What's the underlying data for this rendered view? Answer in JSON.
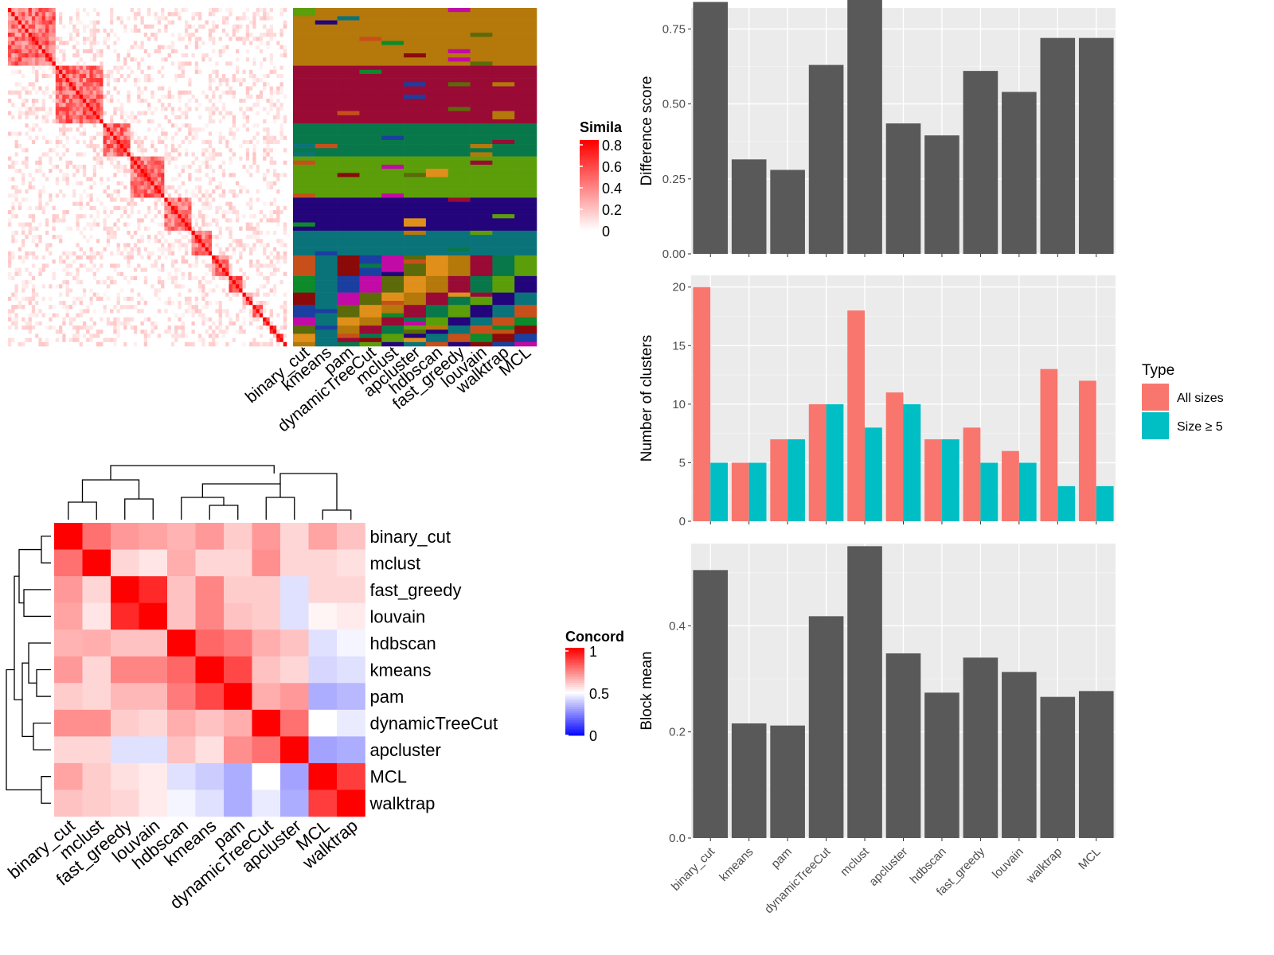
{
  "chart_data": [
    {
      "type": "heatmap",
      "panel": "similarity-matrix-with-cluster-labels",
      "legend_title": "Simila",
      "legend_ticks": [
        "0.8",
        "0.6",
        "0.4",
        "0.2",
        "0"
      ],
      "column_labels": [
        "binary_cut",
        "kmeans",
        "pam",
        "dynamicTreeCut",
        "mclust",
        "apcluster",
        "hdbscan",
        "fast_greedy",
        "louvain",
        "walktrap",
        "MCL"
      ],
      "blocks": [
        {
          "start": 0,
          "size": 14
        },
        {
          "start": 14,
          "size": 14
        },
        {
          "start": 28,
          "size": 8
        },
        {
          "start": 36,
          "size": 10
        },
        {
          "start": 46,
          "size": 8
        },
        {
          "start": 54,
          "size": 6
        },
        {
          "start": 60,
          "size": 5
        },
        {
          "start": 65,
          "size": 4
        },
        {
          "start": 69,
          "size": 3
        },
        {
          "start": 72,
          "size": 3
        },
        {
          "start": 75,
          "size": 2
        },
        {
          "start": 77,
          "size": 2
        },
        {
          "start": 79,
          "size": 2
        },
        {
          "start": 81,
          "size": 1
        }
      ],
      "n_items": 82,
      "label_colors": [
        "#b5780a",
        "#990a35",
        "#08784a",
        "#5c9e0a",
        "#23047a",
        "#0a737a",
        "#c7501a",
        "#0d8a2a",
        "#8a0a0a",
        "#1a3fa0",
        "#c20aa6",
        "#5c6a0a",
        "#e0901a"
      ]
    },
    {
      "type": "heatmap",
      "panel": "concordance-matrix",
      "legend_title": "Concord",
      "legend_ticks": [
        "1",
        "0.5",
        "0"
      ],
      "row_labels": [
        "binary_cut",
        "mclust",
        "fast_greedy",
        "louvain",
        "hdbscan",
        "kmeans",
        "pam",
        "dynamicTreeCut",
        "apcluster",
        "MCL",
        "walktrap"
      ],
      "column_labels": [
        "binary_cut",
        "mclust",
        "fast_greedy",
        "louvain",
        "hdbscan",
        "kmeans",
        "pam",
        "dynamicTreeCut",
        "apcluster",
        "MCL",
        "walktrap"
      ],
      "values": [
        [
          1.0,
          0.78,
          0.7,
          0.68,
          0.65,
          0.7,
          0.6,
          0.7,
          0.58,
          0.68,
          0.62
        ],
        [
          0.78,
          1.0,
          0.58,
          0.55,
          0.66,
          0.58,
          0.58,
          0.72,
          0.58,
          0.58,
          0.56
        ],
        [
          0.7,
          0.58,
          1.0,
          0.92,
          0.62,
          0.74,
          0.6,
          0.6,
          0.44,
          0.58,
          0.58
        ],
        [
          0.68,
          0.55,
          0.92,
          1.0,
          0.62,
          0.74,
          0.62,
          0.6,
          0.44,
          0.52,
          0.54
        ],
        [
          0.65,
          0.66,
          0.62,
          0.62,
          1.0,
          0.8,
          0.76,
          0.66,
          0.62,
          0.44,
          0.48
        ],
        [
          0.7,
          0.58,
          0.74,
          0.74,
          0.8,
          1.0,
          0.86,
          0.62,
          0.58,
          0.42,
          0.44
        ],
        [
          0.6,
          0.58,
          0.64,
          0.64,
          0.76,
          0.86,
          1.0,
          0.66,
          0.7,
          0.34,
          0.36
        ],
        [
          0.72,
          0.72,
          0.6,
          0.58,
          0.66,
          0.62,
          0.66,
          1.0,
          0.78,
          0.5,
          0.46
        ],
        [
          0.58,
          0.58,
          0.44,
          0.44,
          0.62,
          0.56,
          0.72,
          0.78,
          1.0,
          0.32,
          0.34
        ],
        [
          0.68,
          0.6,
          0.56,
          0.54,
          0.44,
          0.4,
          0.34,
          0.5,
          0.32,
          1.0,
          0.88
        ],
        [
          0.62,
          0.6,
          0.58,
          0.54,
          0.48,
          0.44,
          0.34,
          0.46,
          0.34,
          0.88,
          1.0
        ]
      ]
    },
    {
      "type": "bar",
      "panel": "difference-score",
      "categories": [
        "binary_cut",
        "kmeans",
        "pam",
        "dynamicTreeCut",
        "mclust",
        "apcluster",
        "hdbscan",
        "fast_greedy",
        "louvain",
        "walktrap",
        "MCL"
      ],
      "values": [
        0.84,
        0.315,
        0.28,
        0.63,
        0.88,
        0.435,
        0.395,
        0.61,
        0.54,
        0.72,
        0.72
      ],
      "ylabel": "Difference score",
      "ylim": [
        0,
        0.82
      ],
      "yticks": [
        0,
        0.25,
        0.5,
        0.75
      ],
      "ytick_labels": [
        "0.00",
        "0.25",
        "0.50",
        "0.75"
      ],
      "bar_color": "#595959"
    },
    {
      "type": "bar",
      "panel": "number-of-clusters",
      "categories": [
        "binary_cut",
        "kmeans",
        "pam",
        "dynamicTreeCut",
        "mclust",
        "apcluster",
        "hdbscan",
        "fast_greedy",
        "louvain",
        "walktrap",
        "MCL"
      ],
      "series": [
        {
          "name": "All sizes",
          "color": "#f8766d",
          "values": [
            20,
            5,
            7,
            10,
            18,
            11,
            7,
            8,
            6,
            13,
            12
          ]
        },
        {
          "name": "Size ≥ 5",
          "color": "#00bfc4",
          "values": [
            5,
            5,
            7,
            10,
            8,
            10,
            7,
            5,
            5,
            3,
            3
          ]
        }
      ],
      "ylabel": "Number of clusters",
      "ylim": [
        0,
        21
      ],
      "yticks": [
        0,
        5,
        10,
        15,
        20
      ],
      "ytick_labels": [
        "0",
        "5",
        "10",
        "15",
        "20"
      ],
      "legend_title": "Type",
      "legend_position": "right"
    },
    {
      "type": "bar",
      "panel": "block-mean",
      "categories": [
        "binary_cut",
        "kmeans",
        "pam",
        "dynamicTreeCut",
        "mclust",
        "apcluster",
        "hdbscan",
        "fast_greedy",
        "louvain",
        "walktrap",
        "MCL"
      ],
      "values": [
        0.505,
        0.216,
        0.212,
        0.418,
        0.55,
        0.348,
        0.274,
        0.34,
        0.313,
        0.266,
        0.277
      ],
      "ylabel": "Block mean",
      "ylim": [
        0,
        0.555
      ],
      "yticks": [
        0,
        0.2,
        0.4
      ],
      "ytick_labels": [
        "0.0",
        "0.2",
        "0.4"
      ],
      "bar_color": "#595959"
    }
  ]
}
